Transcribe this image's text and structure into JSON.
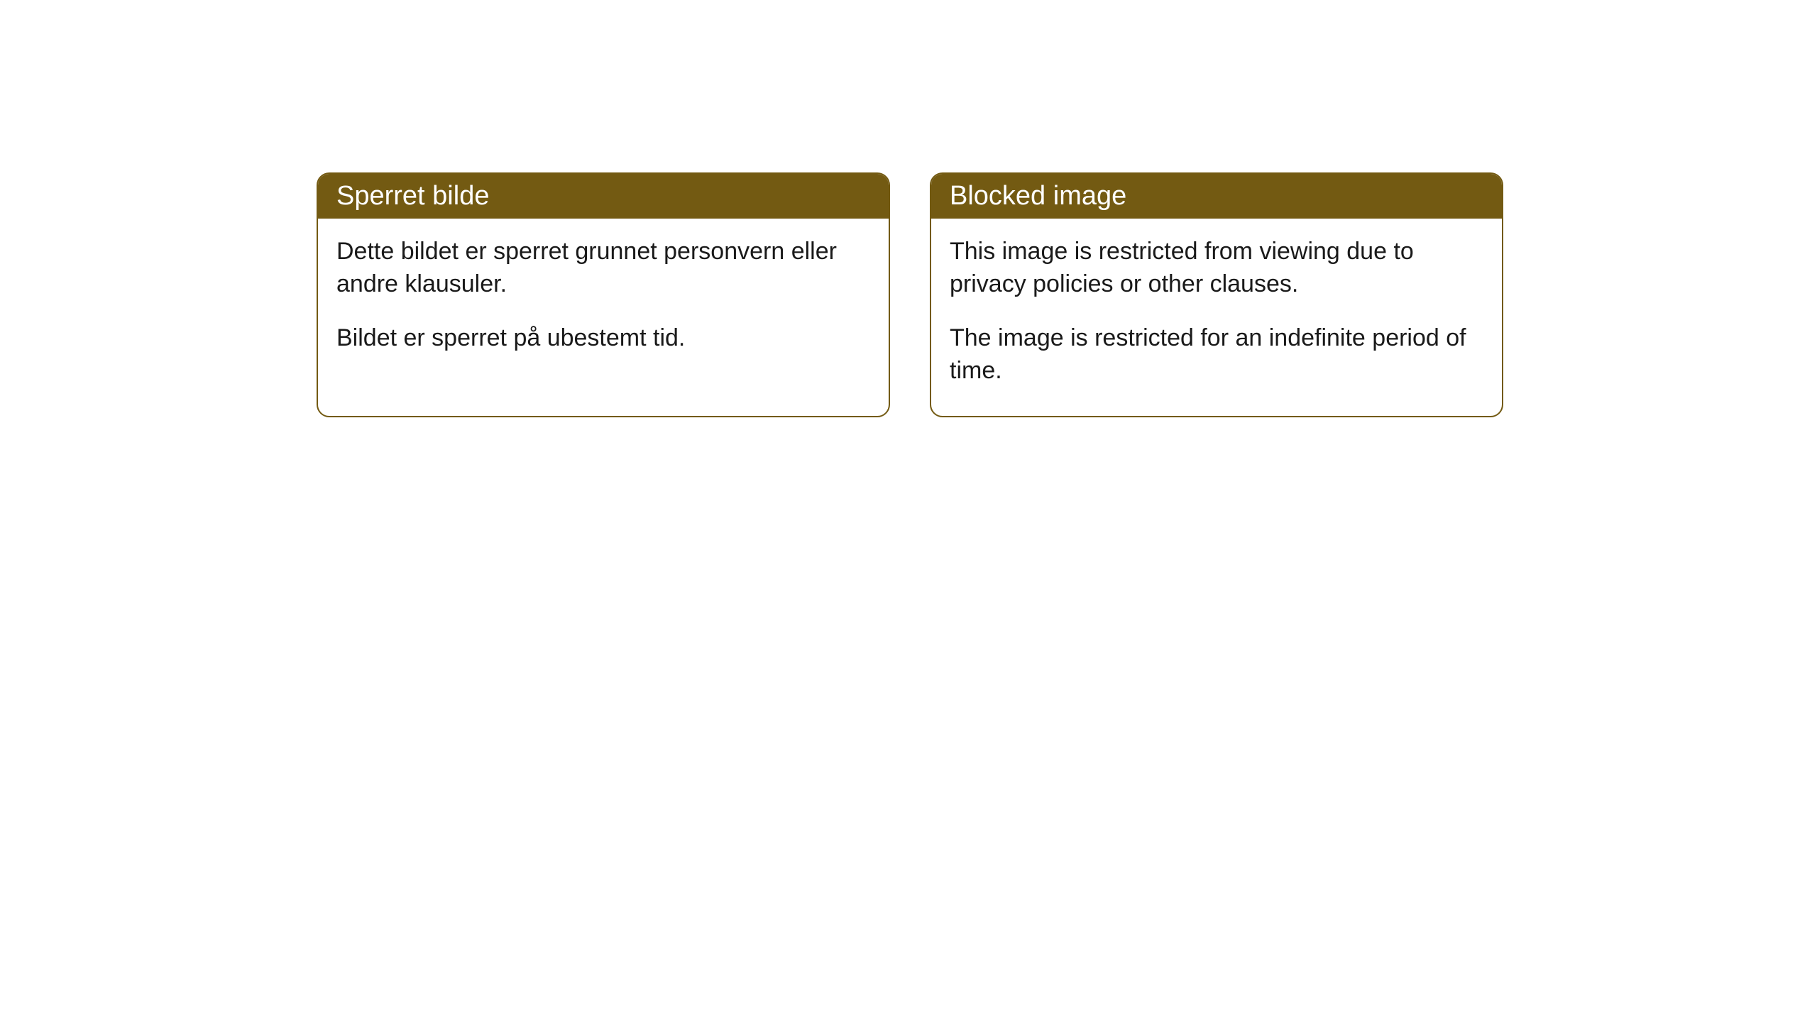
{
  "cards": [
    {
      "title": "Sperret bilde",
      "paragraph1": "Dette bildet er sperret grunnet personvern eller andre klausuler.",
      "paragraph2": "Bildet er sperret på ubestemt tid."
    },
    {
      "title": "Blocked image",
      "paragraph1": "This image is restricted from viewing due to privacy policies or other clauses.",
      "paragraph2": "The image is restricted for an indefinite period of time."
    }
  ],
  "colors": {
    "header_background": "#735a12",
    "header_text": "#ffffff",
    "card_border": "#735a12",
    "body_text": "#1a1a1a",
    "page_background": "#ffffff"
  }
}
